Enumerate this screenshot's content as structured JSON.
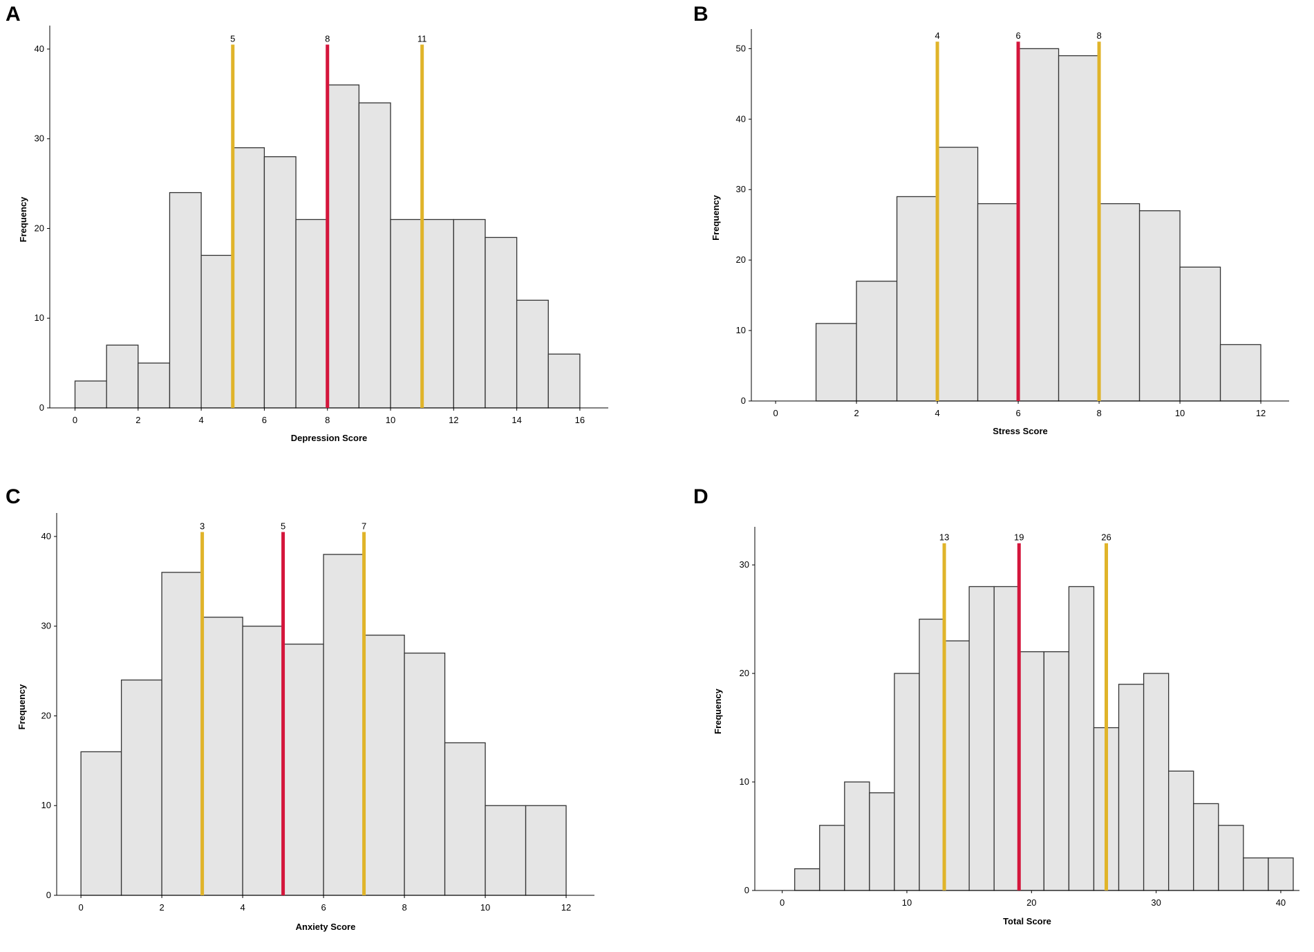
{
  "panels": [
    {
      "letter": "A",
      "chart_data": {
        "type": "bar",
        "subtype": "histogram",
        "xlabel": "Depression Score",
        "ylabel": "Frequency",
        "xlim": [
          -0.8,
          16.9
        ],
        "ylim": [
          0,
          42
        ],
        "xticks": [
          0,
          2,
          4,
          6,
          8,
          10,
          12,
          14,
          16
        ],
        "yticks": [
          0,
          10,
          20,
          30,
          40
        ],
        "bin_width": 1,
        "bins": [
          0,
          1,
          2,
          3,
          4,
          5,
          6,
          7,
          8,
          9,
          10,
          11,
          12,
          13,
          14,
          15
        ],
        "values": [
          3,
          7,
          5,
          24,
          17,
          29,
          28,
          21,
          36,
          34,
          21,
          21,
          21,
          19,
          12,
          6
        ],
        "markers": [
          {
            "value": 5,
            "label": "5",
            "kind": "quartile",
            "color": "#e0b42a"
          },
          {
            "value": 8,
            "label": "8",
            "kind": "median",
            "color": "#d4163c"
          },
          {
            "value": 11,
            "label": "11",
            "kind": "quartile",
            "color": "#e0b42a"
          }
        ],
        "marker_top": 40.5
      }
    },
    {
      "letter": "B",
      "chart_data": {
        "type": "bar",
        "subtype": "histogram",
        "xlabel": "Stress Score",
        "ylabel": "Frequency",
        "xlim": [
          -0.6,
          12.7
        ],
        "ylim": [
          0,
          52
        ],
        "xticks": [
          0,
          2,
          4,
          6,
          8,
          10,
          12
        ],
        "yticks": [
          0,
          10,
          20,
          30,
          40,
          50
        ],
        "bin_width": 1,
        "bins": [
          1,
          2,
          3,
          4,
          5,
          6,
          7,
          8,
          9,
          10,
          11
        ],
        "values": [
          11,
          17,
          29,
          36,
          28,
          50,
          49,
          28,
          27,
          19,
          8
        ],
        "markers": [
          {
            "value": 4,
            "label": "4",
            "kind": "quartile",
            "color": "#e0b42a"
          },
          {
            "value": 6,
            "label": "6",
            "kind": "median",
            "color": "#d4163c"
          },
          {
            "value": 8,
            "label": "8",
            "kind": "quartile",
            "color": "#e0b42a"
          }
        ],
        "marker_top": 51
      }
    },
    {
      "letter": "C",
      "chart_data": {
        "type": "bar",
        "subtype": "histogram",
        "xlabel": "Anxiety Score",
        "ylabel": "Frequency",
        "xlim": [
          -0.6,
          12.7
        ],
        "ylim": [
          0,
          42
        ],
        "xticks": [
          0,
          2,
          4,
          6,
          8,
          10,
          12
        ],
        "yticks": [
          0,
          10,
          20,
          30,
          40
        ],
        "bin_width": 1,
        "bins": [
          0,
          1,
          2,
          3,
          4,
          5,
          6,
          7,
          8,
          9,
          10,
          11
        ],
        "values": [
          16,
          24,
          36,
          31,
          30,
          28,
          38,
          29,
          27,
          17,
          10,
          10
        ],
        "markers": [
          {
            "value": 3,
            "label": "3",
            "kind": "quartile",
            "color": "#e0b42a"
          },
          {
            "value": 5,
            "label": "5",
            "kind": "median",
            "color": "#d4163c"
          },
          {
            "value": 7,
            "label": "7",
            "kind": "quartile",
            "color": "#e0b42a"
          }
        ],
        "marker_top": 40.5
      }
    },
    {
      "letter": "D",
      "chart_data": {
        "type": "bar",
        "subtype": "histogram",
        "xlabel": "Total Score",
        "ylabel": "Frequency",
        "xlim": [
          -2.2,
          41.5
        ],
        "ylim": [
          0,
          33
        ],
        "xticks": [
          0,
          10,
          20,
          30,
          40
        ],
        "yticks": [
          0,
          10,
          20,
          30
        ],
        "bin_width": 2,
        "bins": [
          1,
          3,
          5,
          7,
          9,
          11,
          13,
          15,
          17,
          19,
          21,
          23,
          25,
          27,
          29,
          31,
          33,
          35,
          37,
          39
        ],
        "values": [
          2,
          6,
          10,
          9,
          20,
          25,
          23,
          28,
          28,
          22,
          22,
          28,
          15,
          19,
          20,
          11,
          8,
          6,
          3,
          3
        ],
        "markers": [
          {
            "value": 13,
            "label": "13",
            "kind": "quartile",
            "color": "#e0b42a"
          },
          {
            "value": 19,
            "label": "19",
            "kind": "median",
            "color": "#d4163c"
          },
          {
            "value": 26,
            "label": "26",
            "kind": "quartile",
            "color": "#e0b42a"
          }
        ],
        "marker_top": 32
      }
    }
  ]
}
